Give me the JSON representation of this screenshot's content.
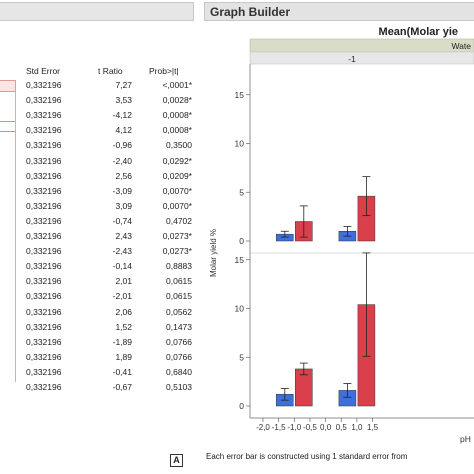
{
  "left_panel": {
    "columns": {
      "std_error": "Std Error",
      "t_ratio": "t Ratio",
      "prob": "Prob>|t|"
    },
    "rows": [
      {
        "std_error": "0,332196",
        "t_ratio": "7,27",
        "prob": "<,0001*"
      },
      {
        "std_error": "0,332196",
        "t_ratio": "3,53",
        "prob": "0,0028*"
      },
      {
        "std_error": "0,332196",
        "t_ratio": "-4,12",
        "prob": "0,0008*"
      },
      {
        "std_error": "0,332196",
        "t_ratio": "4,12",
        "prob": "0,0008*"
      },
      {
        "std_error": "0,332196",
        "t_ratio": "-0,96",
        "prob": "0,3500"
      },
      {
        "std_error": "0,332196",
        "t_ratio": "-2,40",
        "prob": "0,0292*"
      },
      {
        "std_error": "0,332196",
        "t_ratio": "2,56",
        "prob": "0,0209*"
      },
      {
        "std_error": "0,332196",
        "t_ratio": "-3,09",
        "prob": "0,0070*"
      },
      {
        "std_error": "0,332196",
        "t_ratio": "3,09",
        "prob": "0,0070*"
      },
      {
        "std_error": "0,332196",
        "t_ratio": "-0,74",
        "prob": "0,4702"
      },
      {
        "std_error": "0,332196",
        "t_ratio": "2,43",
        "prob": "0,0273*"
      },
      {
        "std_error": "0,332196",
        "t_ratio": "-2,43",
        "prob": "0,0273*"
      },
      {
        "std_error": "0,332196",
        "t_ratio": "-0,14",
        "prob": "0,8883"
      },
      {
        "std_error": "0,332196",
        "t_ratio": "2,01",
        "prob": "0,0615"
      },
      {
        "std_error": "0,332196",
        "t_ratio": "-2,01",
        "prob": "0,0615"
      },
      {
        "std_error": "0,332196",
        "t_ratio": "2,06",
        "prob": "0,0562"
      },
      {
        "std_error": "0,332196",
        "t_ratio": "1,52",
        "prob": "0,1473"
      },
      {
        "std_error": "0,332196",
        "t_ratio": "-1,89",
        "prob": "0,0766"
      },
      {
        "std_error": "0,332196",
        "t_ratio": "1,89",
        "prob": "0,0766"
      },
      {
        "std_error": "0,332196",
        "t_ratio": "-0,41",
        "prob": "0,6840"
      },
      {
        "std_error": "0,332196",
        "t_ratio": "-0,67",
        "prob": "0,5103"
      }
    ]
  },
  "graph_builder": {
    "header": "Graph Builder",
    "footnote": "Each error bar is constructed using 1 standard error from",
    "panel_label": "A"
  },
  "chart_data": {
    "type": "bar",
    "title": "Mean(Molar yie",
    "group_header": "Wate",
    "group_value": "-1",
    "xlabel": "pH",
    "ylabel": "Molar yield %",
    "xlim": [
      -2.0,
      1.5
    ],
    "x_ticks": [
      "-2,0",
      "-1,5",
      "-1,0",
      "-0,5",
      "0,0",
      "0,5",
      "1,0",
      "1,5"
    ],
    "y_ticks": [
      "0",
      "5",
      "10",
      "15"
    ],
    "panels": [
      {
        "ylim": [
          0,
          17
        ],
        "bars": [
          {
            "x": -1.0,
            "series": "blue",
            "value": 0.7,
            "err": 0.3
          },
          {
            "x": -1.0,
            "series": "red",
            "value": 2.0,
            "err": 1.6
          },
          {
            "x": 1.0,
            "series": "blue",
            "value": 1.0,
            "err": 0.5
          },
          {
            "x": 1.0,
            "series": "red",
            "value": 4.6,
            "err": 2.0
          }
        ]
      },
      {
        "ylim": [
          0,
          17
        ],
        "bars": [
          {
            "x": -1.0,
            "series": "blue",
            "value": 1.2,
            "err": 0.6
          },
          {
            "x": -1.0,
            "series": "red",
            "value": 3.8,
            "err": 0.6
          },
          {
            "x": 1.0,
            "series": "blue",
            "value": 1.6,
            "err": 0.7
          },
          {
            "x": 1.0,
            "series": "red",
            "value": 10.4,
            "err": 5.3
          }
        ]
      }
    ],
    "colors": {
      "blue": "#3f6fd8",
      "red": "#d9404b"
    }
  }
}
